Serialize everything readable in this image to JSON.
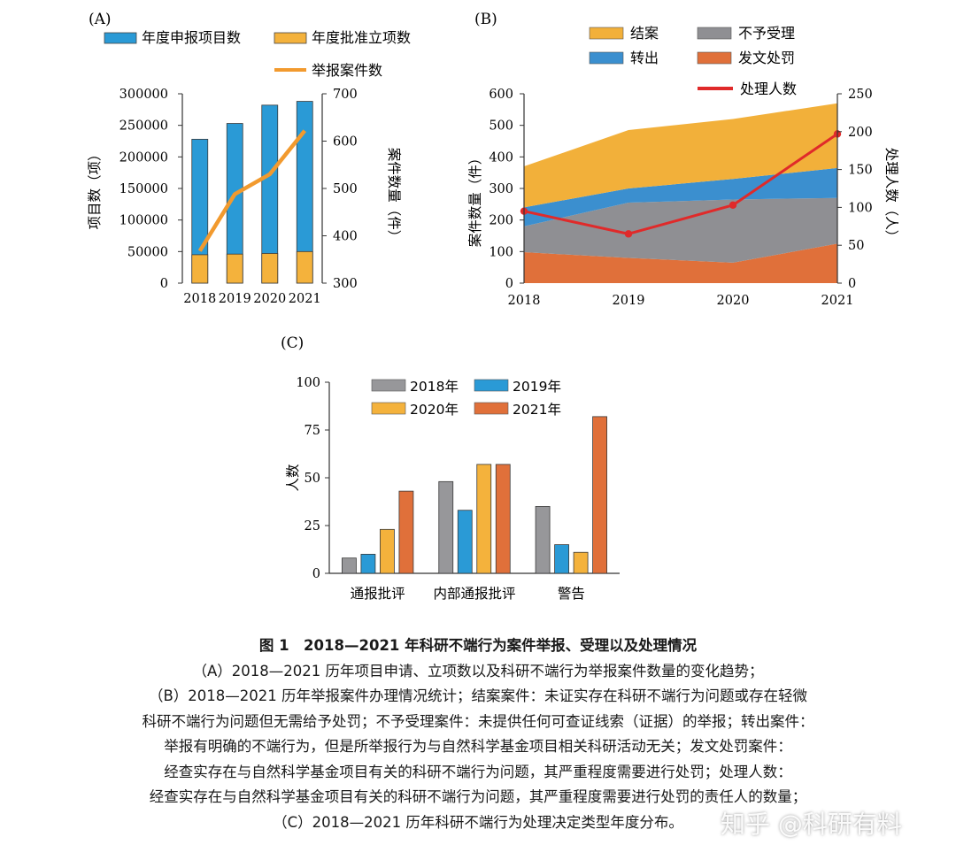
{
  "chart_data": [
    {
      "panel": "(A)",
      "type": "bar",
      "categories": [
        "2018",
        "2019",
        "2020",
        "2021"
      ],
      "series": [
        {
          "name": "年度申报项目数",
          "type": "bar",
          "axis": "left",
          "values": [
            228000,
            253000,
            282000,
            288000
          ],
          "color": "#2a9ad6"
        },
        {
          "name": "年度批准立项数",
          "type": "bar",
          "axis": "left",
          "values": [
            45000,
            46000,
            47000,
            50000
          ],
          "color": "#f4b23c"
        },
        {
          "name": "举报案件数",
          "type": "line",
          "axis": "right",
          "values": [
            368,
            488,
            530,
            622
          ],
          "color": "#f29a2e"
        }
      ],
      "ylabel": "项目数（项）",
      "y2label": "案件数量（件）",
      "ylim": [
        0,
        300000
      ],
      "yticks": [
        "0",
        "50000",
        "100000",
        "150000",
        "200000",
        "250000",
        "300000"
      ],
      "y2lim": [
        300,
        700
      ],
      "y2ticks": [
        "300",
        "400",
        "500",
        "600",
        "700"
      ],
      "legend": "top"
    },
    {
      "panel": "(B)",
      "type": "area",
      "x": [
        "2018",
        "2019",
        "2020",
        "2021"
      ],
      "series": [
        {
          "name": "发文处罚",
          "type": "area",
          "axis": "left",
          "values": [
            98,
            80,
            65,
            125
          ],
          "color": "#e0703a"
        },
        {
          "name": "不予受理",
          "type": "area",
          "axis": "left",
          "values": [
            82,
            175,
            200,
            145
          ],
          "color": "#8f8f93"
        },
        {
          "name": "转出",
          "type": "area",
          "axis": "left",
          "values": [
            60,
            45,
            65,
            95
          ],
          "color": "#3b8fcf"
        },
        {
          "name": "结案",
          "type": "area",
          "axis": "left",
          "values": [
            130,
            185,
            190,
            205
          ],
          "color": "#f2b03a"
        },
        {
          "name": "处理人数",
          "type": "line",
          "axis": "right",
          "values": [
            95,
            65,
            103,
            197
          ],
          "color": "#e02a2a"
        }
      ],
      "ylabel": "案件数量（件）",
      "y2label": "处理人数（人）",
      "ylim": [
        0,
        600
      ],
      "yticks": [
        "0",
        "100",
        "200",
        "300",
        "400",
        "500",
        "600"
      ],
      "y2lim": [
        0,
        250
      ],
      "y2ticks": [
        "0",
        "50",
        "100",
        "150",
        "200",
        "250"
      ],
      "legend": "top"
    },
    {
      "panel": "(C)",
      "type": "bar",
      "categories": [
        "通报批评",
        "内部通报批评",
        "警告"
      ],
      "series": [
        {
          "name": "2018年",
          "values": [
            8,
            48,
            35
          ],
          "color": "#97979a"
        },
        {
          "name": "2019年",
          "values": [
            10,
            33,
            15
          ],
          "color": "#2a9ad6"
        },
        {
          "name": "2020年",
          "values": [
            23,
            57,
            11
          ],
          "color": "#f4b23c"
        },
        {
          "name": "2021年",
          "values": [
            43,
            57,
            82
          ],
          "color": "#e0703a"
        }
      ],
      "ylabel": "人数",
      "ylim": [
        0,
        100
      ],
      "yticks": [
        "0",
        "25",
        "50",
        "75",
        "100"
      ],
      "legend": "top"
    }
  ],
  "caption": {
    "title": "图 1　2018—2021 年科研不端行为案件举报、受理以及处理情况",
    "lines": [
      "（A）2018—2021 历年项目申请、立项数以及科研不端行为举报案件数量的变化趋势；",
      "（B）2018—2021 历年举报案件办理情况统计；结案案件：未证实存在科研不端行为问题或存在轻微",
      "科研不端行为问题但无需给予处罚；不予受理案件：未提供任何可查证线索（证据）的举报；转出案件：",
      "举报有明确的不端行为，但是所举报行为与自然科学基金项目相关科研活动无关；发文处罚案件：",
      "经查实存在与自然科学基金项目有关的科研不端行为问题，其严重程度需要进行处罚；处理人数：",
      "经查实存在与自然科学基金项目有关的科研不端行为问题，其严重程度需要进行处罚的责任人的数量；",
      "（C）2018—2021 历年科研不端行为处理决定类型年度分布。"
    ]
  },
  "watermark": "知乎 @科研有料"
}
